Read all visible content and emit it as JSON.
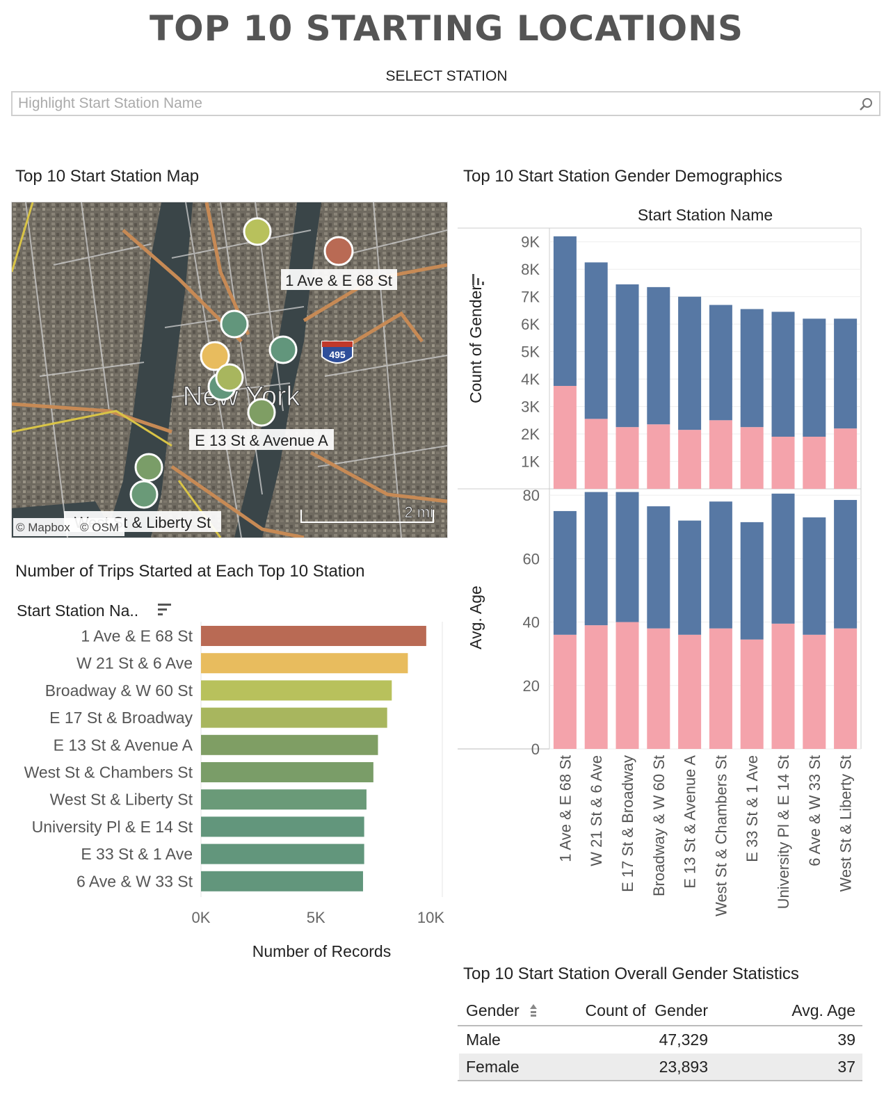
{
  "header": {
    "title": "TOP 10 STARTING LOCATIONS",
    "select_label": "SELECT STATION",
    "search_placeholder": "Highlight Start Station Name"
  },
  "map": {
    "title": "Top 10 Start Station Map",
    "city_label": "New York",
    "labels": [
      "1 Ave & E 68 St",
      "E 13 St & Avenue A",
      "West St & Liberty St"
    ],
    "highway_shield": "495",
    "scale_label": "2 mi",
    "attribution_mapbox": "© Mapbox",
    "attribution_osm": "© OSM"
  },
  "colors": {
    "female": "#f4a3ab",
    "male": "#5778a4",
    "bar_ramp": [
      "#b96a54",
      "#e8bc5e",
      "#b8c15c",
      "#a8b65e",
      "#7f9e64",
      "#7a9d68",
      "#6a9a78",
      "#62967c",
      "#62967c",
      "#62967c"
    ]
  },
  "chart_data": [
    {
      "type": "bar",
      "orientation": "horizontal",
      "title": "Number of Trips Started at Each Top 10 Station",
      "category_header": "Start Station Na..",
      "xlabel": "Number of Records",
      "categories": [
        "1 Ave & E 68 St",
        "W 21 St & 6 Ave",
        "Broadway & W 60 St",
        "E 17 St & Broadway",
        "E 13 St & Avenue A",
        "West St & Chambers St",
        "West St & Liberty St",
        "University Pl & E 14 St",
        "E 33 St & 1 Ave",
        "6 Ave & W 33 St"
      ],
      "values": [
        9800,
        9000,
        8300,
        8100,
        7700,
        7500,
        7200,
        7100,
        7100,
        7050
      ],
      "xlim": [
        0,
        10500
      ],
      "ticks": [
        "0K",
        "5K",
        "10K"
      ]
    },
    {
      "type": "bar",
      "stacked": true,
      "title": "Top 10 Start Station Gender Demographics",
      "xlabel": "Start Station Name",
      "ylabel": "Count of Gender",
      "categories": [
        "1 Ave & E 68 St",
        "W 21 St & 6 Ave",
        "E 17 St & Broadway",
        "Broadway & W 60 St",
        "E 13 St & Avenue A",
        "West St & Chambers St",
        "E 33 St & 1 Ave",
        "University Pl & E 14 St",
        "6 Ave & W 33 St",
        "West St & Liberty St"
      ],
      "series": [
        {
          "name": "Female",
          "values": [
            3750,
            2550,
            2250,
            2350,
            2150,
            2500,
            2250,
            1900,
            1900,
            2200
          ]
        },
        {
          "name": "Male",
          "values": [
            5450,
            5700,
            5200,
            5000,
            4850,
            4200,
            4300,
            4550,
            4300,
            4000
          ]
        }
      ],
      "ylim": [
        0,
        9500
      ],
      "ticks": [
        "1K",
        "2K",
        "3K",
        "4K",
        "5K",
        "6K",
        "7K",
        "8K",
        "9K"
      ]
    },
    {
      "type": "bar",
      "stacked": true,
      "ylabel": "Avg. Age",
      "categories": [
        "1 Ave & E 68 St",
        "W 21 St & 6 Ave",
        "E 17 St & Broadway",
        "Broadway & W 60 St",
        "E 13 St & Avenue A",
        "West St & Chambers St",
        "E 33 St & 1 Ave",
        "University Pl & E 14 St",
        "6 Ave & W 33 St",
        "West St & Liberty St"
      ],
      "series": [
        {
          "name": "Female",
          "values": [
            36,
            39,
            40,
            38,
            36,
            38,
            34.5,
            39.5,
            36,
            38
          ]
        },
        {
          "name": "Male",
          "values": [
            39,
            42,
            41,
            38.5,
            36,
            40,
            37,
            41,
            37,
            40.5
          ]
        }
      ],
      "ylim": [
        0,
        82
      ],
      "ticks": [
        "0",
        "20",
        "40",
        "60",
        "80"
      ]
    },
    {
      "type": "table",
      "title": "Top 10 Start Station Overall Gender Statistics",
      "columns": [
        "Gender",
        "Count of  Gender",
        "Avg. Age"
      ],
      "rows": [
        [
          "Male",
          "47,329",
          "39"
        ],
        [
          "Female",
          "23,893",
          "37"
        ]
      ]
    }
  ]
}
